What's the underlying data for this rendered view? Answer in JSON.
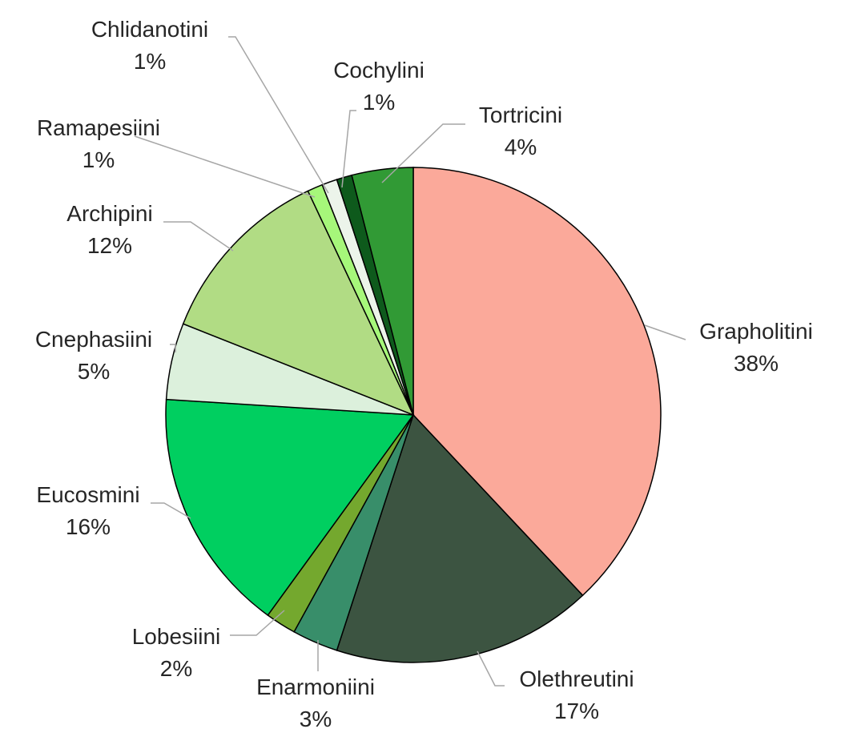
{
  "chart_data": {
    "type": "pie",
    "start": "12 o'clock",
    "direction": "clockwise",
    "slices": [
      {
        "label": "Grapholitini",
        "value": 38,
        "value_label": "38%",
        "color": "#fba99a"
      },
      {
        "label": "Olethreutini",
        "value": 17,
        "value_label": "17%",
        "color": "#3c5441"
      },
      {
        "label": "Enarmoniini",
        "value": 3,
        "value_label": "3%",
        "color": "#388e6a"
      },
      {
        "label": "Lobesiini",
        "value": 2,
        "value_label": "2%",
        "color": "#74a82e"
      },
      {
        "label": "Eucosmini",
        "value": 16,
        "value_label": "16%",
        "color": "#00cf60"
      },
      {
        "label": "Cnephasiini",
        "value": 5,
        "value_label": "5%",
        "color": "#dcf0dc"
      },
      {
        "label": "Archipini",
        "value": 12,
        "value_label": "12%",
        "color": "#b1dc84"
      },
      {
        "label": "Ramapesiini",
        "value": 1,
        "value_label": "1%",
        "color": "#a6f77a"
      },
      {
        "label": "Chlidanotini",
        "value": 1,
        "value_label": "1%",
        "color": "#ecf4ea"
      },
      {
        "label": "Cochylini",
        "value": 1,
        "value_label": "1%",
        "color": "#0e5a1c"
      },
      {
        "label": "Tortricini",
        "value": 4,
        "value_label": "4%",
        "color": "#319a35"
      }
    ]
  }
}
